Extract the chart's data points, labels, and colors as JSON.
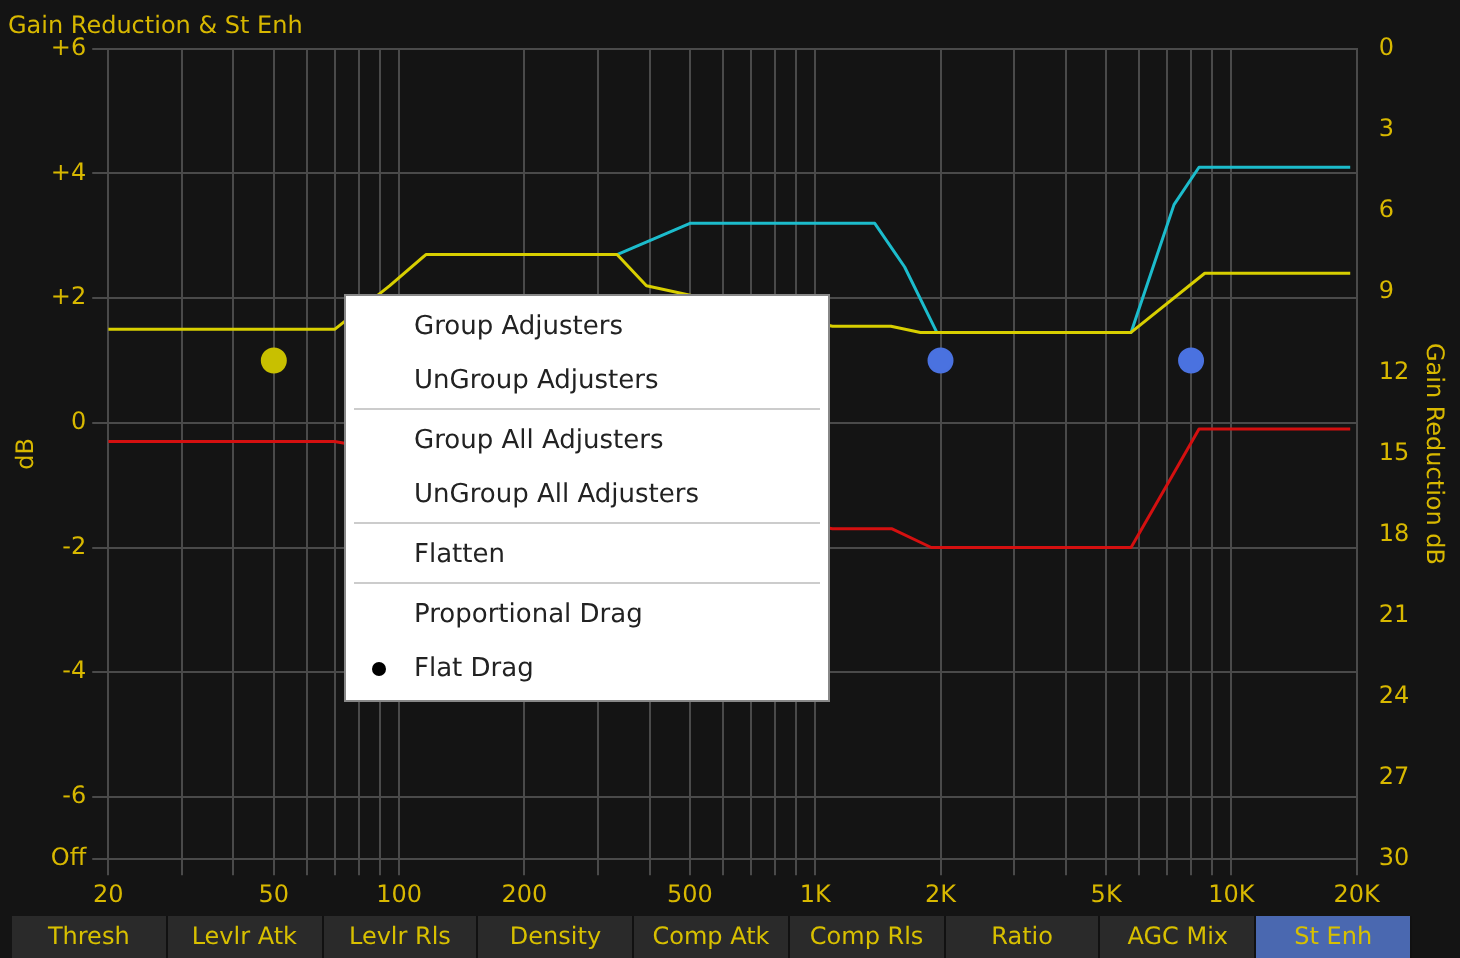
{
  "chart_data": {
    "type": "line",
    "title": "Gain Reduction & St Enh",
    "ylabel": "dB",
    "y2label": "Gain Reduction dB",
    "xlim": [
      20,
      20000
    ],
    "log": "x",
    "xticks": [
      20,
      {
        "value": 30,
        "label": null
      },
      {
        "value": 40,
        "label": null
      },
      50,
      {
        "value": 60,
        "label": null
      },
      {
        "value": 70,
        "label": null
      },
      {
        "value": 80,
        "label": null
      },
      {
        "value": 90,
        "label": null
      },
      100,
      200,
      {
        "value": 300,
        "label": null
      },
      {
        "value": 400,
        "label": null
      },
      500,
      {
        "value": 600,
        "label": null
      },
      {
        "value": 700,
        "label": null
      },
      {
        "value": 800,
        "label": null
      },
      {
        "value": 900,
        "label": null
      },
      {
        "value": 1000,
        "label": "1K"
      },
      {
        "value": 2000,
        "label": "2K"
      },
      {
        "value": 3000,
        "label": null
      },
      {
        "value": 4000,
        "label": null
      },
      {
        "value": 5000,
        "label": "5K"
      },
      {
        "value": 6000,
        "label": null
      },
      {
        "value": 7000,
        "label": null
      },
      {
        "value": 8000,
        "label": null
      },
      {
        "value": 9000,
        "label": null
      },
      {
        "value": 10000,
        "label": "10K"
      },
      {
        "value": 20000,
        "label": "20K"
      }
    ],
    "ylim": [
      -7,
      6
    ],
    "yticks": [
      {
        "value": -7,
        "label": "Off"
      },
      -6,
      -4,
      -2,
      0,
      {
        "value": 2,
        "label": "+2"
      },
      {
        "value": 4,
        "label": "+4"
      },
      {
        "value": 6,
        "label": "+6"
      }
    ],
    "y2lim": [
      30,
      0
    ],
    "y2ticks": [
      0,
      3,
      6,
      9,
      12,
      15,
      18,
      21,
      24,
      27,
      30
    ],
    "grid": true,
    "series": [
      {
        "color": "#d8cf00",
        "x": [
          20,
          70,
          95,
          116,
          334,
          393,
          1100,
          1520,
          1790,
          5740,
          8630,
          19300
        ],
        "values": [
          1.5,
          1.5,
          2.2,
          2.7,
          2.7,
          2.2,
          1.55,
          1.55,
          1.45,
          1.45,
          2.4,
          2.4
        ]
      },
      {
        "color": "#1cbccc",
        "x": [
          334,
          500,
          1390,
          1640,
          1960,
          5740,
          7280,
          8360,
          19300
        ],
        "values": [
          2.7,
          3.2,
          3.2,
          2.5,
          1.45,
          1.45,
          3.5,
          4.1,
          4.1
        ]
      },
      {
        "color": "#d41010",
        "x": [
          20,
          70,
          1100,
          1530,
          1900,
          5740,
          7280,
          8360,
          19300
        ],
        "values": [
          -0.3,
          -0.3,
          -1.7,
          -1.7,
          -2.0,
          -2.0,
          -0.8,
          -0.1,
          -0.1
        ]
      },
      {
        "type": "scatter",
        "color": "#c8c000",
        "marker": "circle",
        "x": [
          50
        ],
        "values": [
          1.0
        ]
      },
      {
        "type": "scatter",
        "color": "#4a72e0",
        "marker": "circle",
        "x": [
          2000,
          8000
        ],
        "values": [
          1.0,
          1.0
        ]
      }
    ],
    "annotations": [
      "Group Adjusters",
      "UnGroup Adjusters",
      "Group All Adjusters",
      "UnGroup All Adjusters",
      "Flatten",
      "Proportional Drag",
      "Flat Drag",
      "Thresh",
      "Levlr Atk",
      "Levlr Rls",
      "Density",
      "Comp Atk",
      "Comp Rls",
      "Ratio",
      "AGC Mix",
      "St Enh"
    ]
  }
}
